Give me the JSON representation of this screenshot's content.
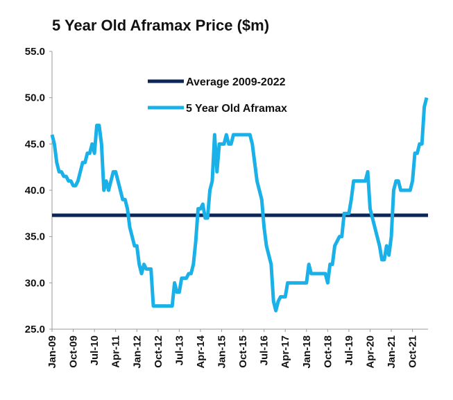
{
  "chart_data": {
    "type": "line",
    "title": "5 Year Old Aframax Price ($m)",
    "categories": [
      "Jan-09",
      null,
      null,
      null,
      null,
      null,
      null,
      null,
      null,
      "Oct-09",
      null,
      null,
      null,
      null,
      null,
      null,
      null,
      null,
      "Jul-10",
      null,
      null,
      null,
      null,
      null,
      null,
      null,
      null,
      "Apr-11",
      null,
      null,
      null,
      null,
      null,
      null,
      null,
      null,
      "Jan-12",
      null,
      null,
      null,
      null,
      null,
      null,
      null,
      null,
      "Oct-12",
      null,
      null,
      null,
      null,
      null,
      null,
      null,
      null,
      "Jul-13",
      null,
      null,
      null,
      null,
      null,
      null,
      null,
      null,
      "Apr-14",
      null,
      null,
      null,
      null,
      null,
      null,
      null,
      null,
      "Jan-15",
      null,
      null,
      null,
      null,
      null,
      null,
      null,
      null,
      "Oct-15",
      null,
      null,
      null,
      null,
      null,
      null,
      null,
      null,
      "Jul-16",
      null,
      null,
      null,
      null,
      null,
      null,
      null,
      null,
      "Apr-17",
      null,
      null,
      null,
      null,
      null,
      null,
      null,
      null,
      "Jan-18",
      null,
      null,
      null,
      null,
      null,
      null,
      null,
      null,
      "Oct-18",
      null,
      null,
      null,
      null,
      null,
      null,
      null,
      null,
      "Jul-19",
      null,
      null,
      null,
      null,
      null,
      null,
      null,
      null,
      "Apr-20",
      null,
      null,
      null,
      null,
      null,
      null,
      null,
      null,
      "Jan-21",
      null,
      null,
      null,
      null,
      null,
      null,
      null,
      null,
      "Oct-21",
      null,
      null,
      null,
      null,
      null,
      null
    ],
    "series": [
      {
        "name": "Average 2009-2022",
        "color": "#0d2659",
        "value": 37.3
      },
      {
        "name": "5 Year Old Aframax",
        "color": "#1ab0e8",
        "values": [
          46,
          45,
          43,
          42,
          42,
          41.5,
          41.5,
          41,
          41,
          40.5,
          40.5,
          41,
          42,
          43,
          43,
          44,
          44,
          45,
          44,
          47,
          47,
          45,
          40,
          41,
          40,
          41,
          42,
          42,
          41,
          40,
          39,
          39,
          38,
          36,
          35,
          34,
          34,
          32,
          31,
          32,
          31.5,
          31.5,
          31.5,
          27.5,
          27.5,
          27.5,
          27.5,
          27.5,
          27.5,
          27.5,
          27.5,
          27.5,
          30,
          29,
          29,
          30.5,
          30.5,
          30.5,
          31,
          31,
          32,
          34.5,
          38,
          38,
          38.5,
          37,
          37,
          40,
          41,
          46,
          42,
          45,
          45,
          45,
          46,
          45,
          45,
          46,
          46,
          46,
          46,
          46,
          46,
          46,
          46,
          45,
          43,
          41,
          40,
          39,
          36,
          34,
          33,
          32,
          28,
          27,
          28,
          28.5,
          28.5,
          28.5,
          30,
          30,
          30,
          30,
          30,
          30,
          30,
          30,
          30,
          32,
          31,
          31,
          31,
          31,
          31,
          31,
          31,
          30,
          32,
          32,
          34,
          34.5,
          35,
          35,
          37.5,
          37.5,
          37.5,
          39,
          41,
          41,
          41,
          41,
          41,
          41,
          42,
          38,
          37,
          36,
          35,
          34,
          32.5,
          32.5,
          34,
          33,
          35,
          40,
          41,
          41,
          40,
          40,
          40,
          40,
          40,
          41,
          44,
          44,
          45,
          45,
          49,
          50
        ]
      }
    ],
    "ylim": [
      25,
      55
    ],
    "yticks": [
      {
        "value": 25,
        "label": "25.0"
      },
      {
        "value": 30,
        "label": "30.0"
      },
      {
        "value": 35,
        "label": "35.0"
      },
      {
        "value": 40,
        "label": "40.0"
      },
      {
        "value": 45,
        "label": "45.0"
      },
      {
        "value": 50,
        "label": "50.0"
      },
      {
        "value": 55,
        "label": "55.0"
      }
    ]
  }
}
